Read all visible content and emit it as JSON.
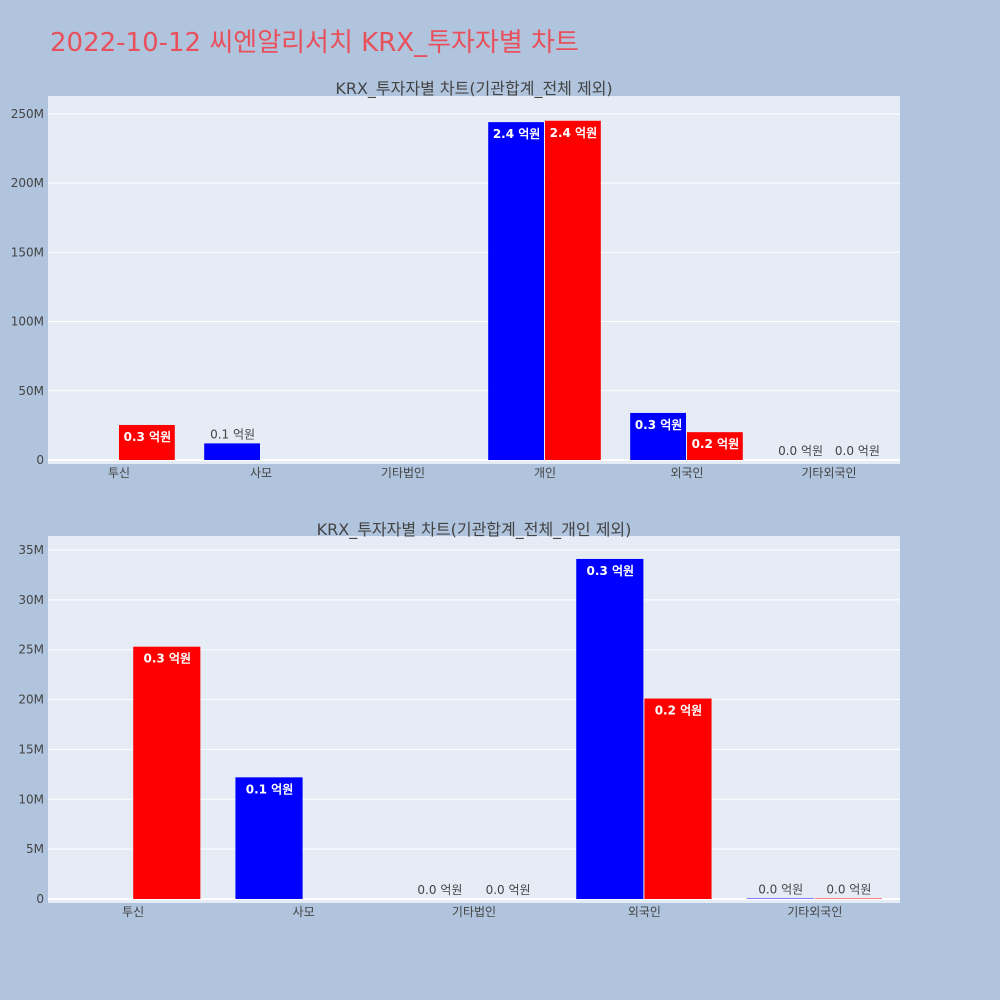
{
  "page_title": "2022-10-12 씨엔알리서치 KRX_투자자별 차트",
  "colors": {
    "background": "#b0c4de",
    "plot_background": "#e5ecf6",
    "grid": "#ffffff",
    "title_accent": "#e8505b",
    "series_blue": "#0000ff",
    "series_red": "#ff0000",
    "axis_text": "#444444"
  },
  "chart_data": [
    {
      "type": "bar",
      "title": "KRX_투자자별 차트(기관합계_전체 제외)",
      "categories": [
        "투신",
        "사모",
        "기타법인",
        "개인",
        "외국인",
        "기타외국인"
      ],
      "ylim": [
        0,
        260000000
      ],
      "yticks": [
        0,
        50000000,
        100000000,
        150000000,
        200000000,
        250000000
      ],
      "ytick_labels": [
        "0",
        "50M",
        "100M",
        "150M",
        "200M",
        "250M"
      ],
      "grid": true,
      "legend": "none",
      "series": [
        {
          "color": "#0000ff",
          "values": [
            null,
            12000000,
            0,
            244000000,
            34000000,
            0
          ],
          "labels": [
            "",
            "0.1 억원",
            "",
            "2.4 억원",
            "0.3 억원",
            "0.0 억원"
          ]
        },
        {
          "color": "#ff0000",
          "values": [
            25300000,
            null,
            0,
            245000000,
            20100000,
            0
          ],
          "labels": [
            "0.3 억원",
            "",
            "",
            "2.4 억원",
            "0.2 억원",
            "0.0 억원"
          ]
        }
      ]
    },
    {
      "type": "bar",
      "title": "KRX_투자자별 차트(기관합계_전체_개인 제외)",
      "categories": [
        "투신",
        "사모",
        "기타법인",
        "외국인",
        "기타외국인"
      ],
      "ylim": [
        0,
        36000000
      ],
      "yticks": [
        0,
        5000000,
        10000000,
        15000000,
        20000000,
        25000000,
        30000000,
        35000000
      ],
      "ytick_labels": [
        "0",
        "5M",
        "10M",
        "15M",
        "20M",
        "25M",
        "30M",
        "35M"
      ],
      "grid": true,
      "legend": "none",
      "series": [
        {
          "color": "#0000ff",
          "values": [
            null,
            12200000,
            0,
            34100000,
            50000
          ],
          "labels": [
            "",
            "0.1 억원",
            "0.0 억원",
            "0.3 억원",
            "0.0 억원"
          ]
        },
        {
          "color": "#ff0000",
          "values": [
            25300000,
            null,
            0,
            20100000,
            50000
          ],
          "labels": [
            "0.3 억원",
            "",
            "0.0 억원",
            "0.2 억원",
            "0.0 억원"
          ]
        }
      ]
    }
  ]
}
